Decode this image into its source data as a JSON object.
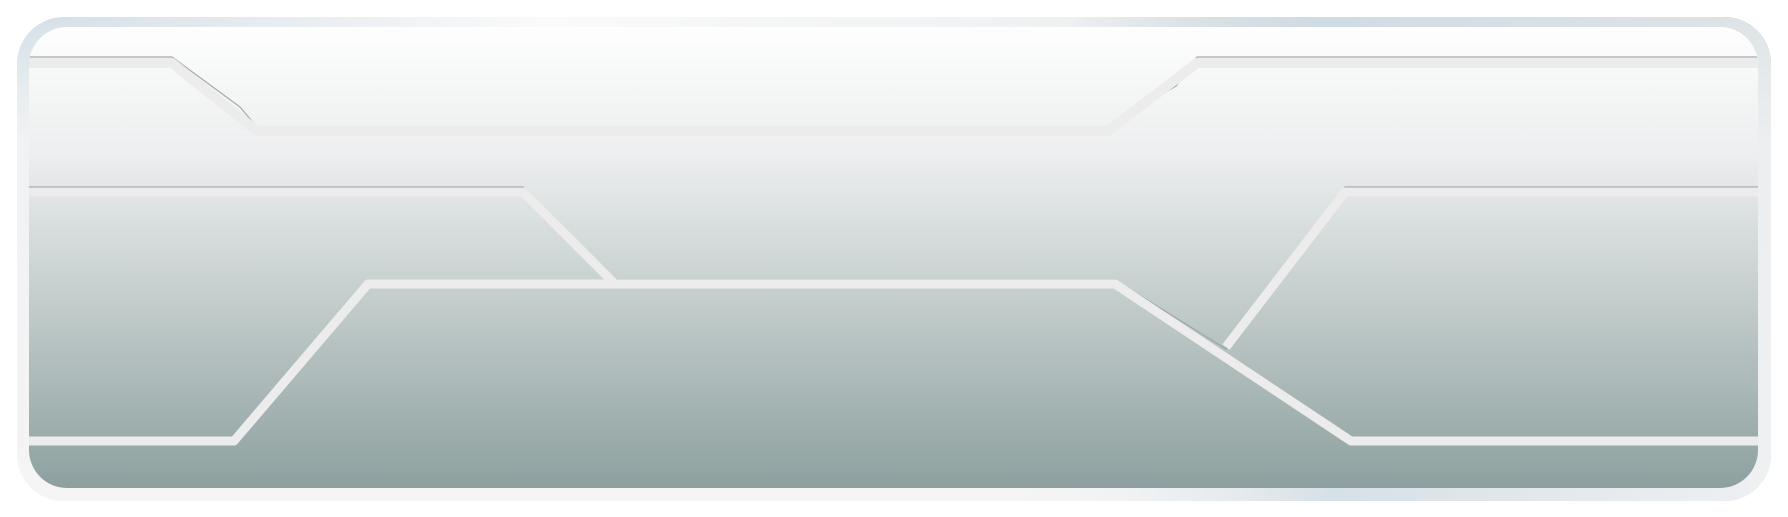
{
  "panel": {
    "colors": {
      "outer_frame_top_left": "#d3dee6",
      "outer_frame_top_right": "#4e7a80",
      "outer_frame_bottom": "#f5f5f5",
      "fill_top": "#fdfefd",
      "fill_mid": "#eceeef",
      "fill_bottom": "#8da09f",
      "circuit_line": "#ececec",
      "circuit_line_shadow": "#9aa3a7"
    }
  }
}
